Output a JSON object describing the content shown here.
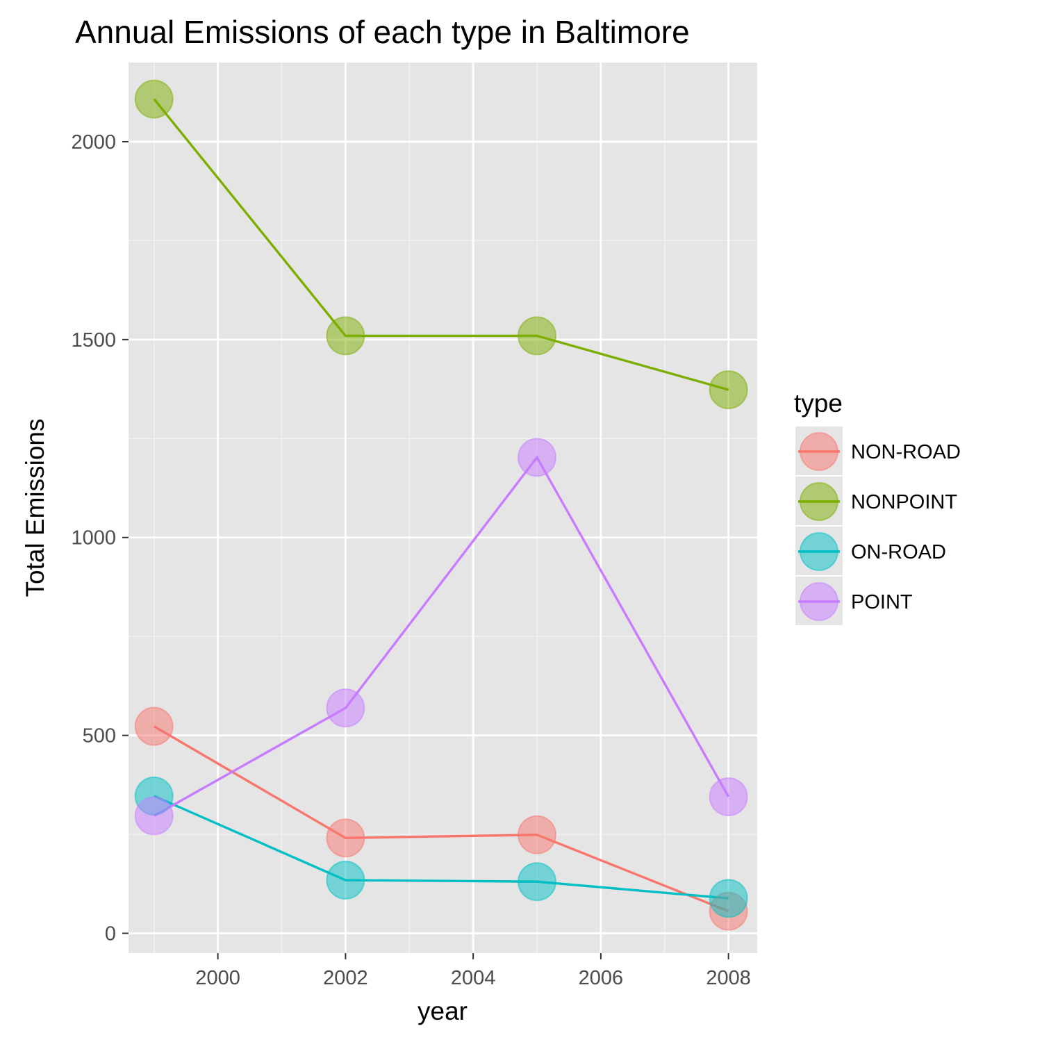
{
  "chart_data": {
    "type": "line",
    "title": "Annual Emissions of each type in Baltimore",
    "xlabel": "year",
    "ylabel": "Total Emissions",
    "x": [
      1999,
      2002,
      2005,
      2008
    ],
    "xlim": [
      1998.6,
      2008.45
    ],
    "ylim": [
      -50,
      2200
    ],
    "xticks": [
      2000,
      2002,
      2004,
      2006,
      2008
    ],
    "yticks": [
      0,
      500,
      1000,
      1500,
      2000
    ],
    "xtick_labels": [
      "2000",
      "2002",
      "2004",
      "2006",
      "2008"
    ],
    "ytick_labels": [
      "0",
      "500",
      "1000",
      "1500",
      "2000"
    ],
    "grid": true,
    "legend": {
      "title": "type",
      "position": "right"
    },
    "series": [
      {
        "name": "NON-ROAD",
        "color": "#F8766D",
        "values": [
          522.94,
          240.85,
          248.93,
          55.82
        ]
      },
      {
        "name": "NONPOINT",
        "color": "#7CAE00",
        "values": [
          2107.63,
          1509.5,
          1509.5,
          1373.21
        ]
      },
      {
        "name": "ON-ROAD",
        "color": "#00BFC4",
        "values": [
          346.82,
          134.31,
          130.43,
          88.28
        ]
      },
      {
        "name": "POINT",
        "color": "#C77CFF",
        "values": [
          296.8,
          569.26,
          1202.49,
          344.98
        ]
      }
    ]
  }
}
